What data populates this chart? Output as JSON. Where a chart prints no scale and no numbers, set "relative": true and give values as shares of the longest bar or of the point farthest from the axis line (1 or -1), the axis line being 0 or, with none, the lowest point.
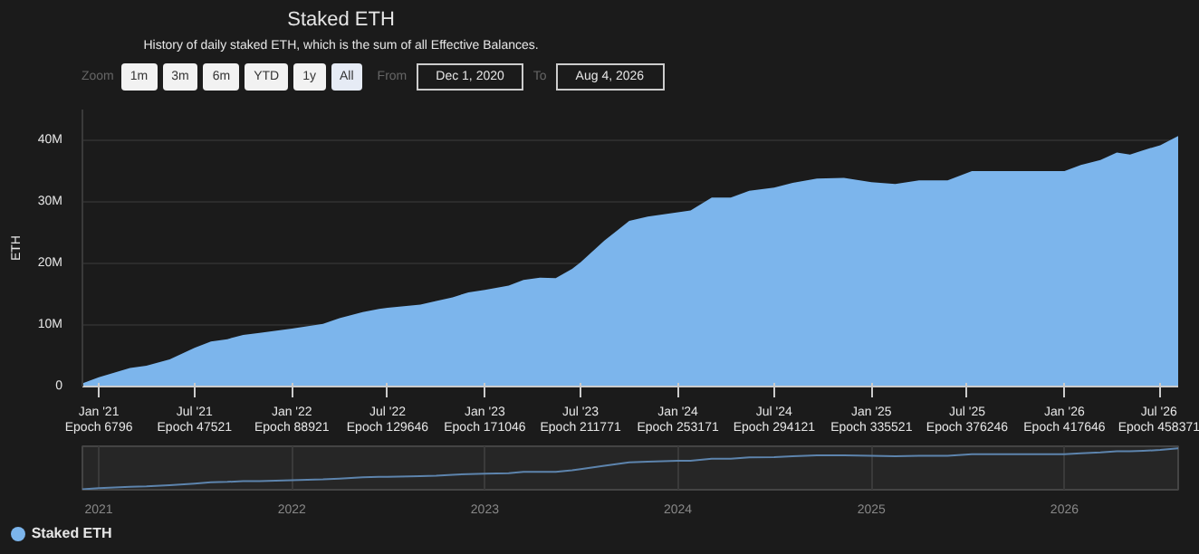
{
  "chart_data": [
    {
      "type": "area",
      "title": "Staked ETH",
      "subtitle": "History of daily staked ETH, which is the sum of all Effective Balances.",
      "ylabel": "ETH",
      "annotations": [
        "Zoom",
        "1m",
        "3m",
        "6m",
        "YTD",
        "1y",
        "All",
        "From",
        "Dec 1, 2020",
        "To",
        "Aug 4, 2026"
      ],
      "x": [
        "2020-12-01",
        "2021-01-01",
        "2021-03-01",
        "2021-04-01",
        "2021-05-15",
        "2021-07-01",
        "2021-08-01",
        "2021-09-01",
        "2021-10-01",
        "2021-11-01",
        "2022-01-01",
        "2022-03-01",
        "2022-04-01",
        "2022-05-15",
        "2022-06-15",
        "2022-07-01",
        "2022-09-01",
        "2022-10-01",
        "2022-11-01",
        "2022-12-01",
        "2023-01-01",
        "2023-02-15",
        "2023-03-15",
        "2023-04-15",
        "2023-05-15",
        "2023-06-15",
        "2023-07-01",
        "2023-08-15",
        "2023-10-01",
        "2023-11-05",
        "2024-01-01",
        "2024-01-25",
        "2024-03-05",
        "2024-04-10",
        "2024-05-15",
        "2024-07-01",
        "2024-08-05",
        "2024-09-20",
        "2024-11-10",
        "2025-01-01",
        "2025-02-15",
        "2025-04-01",
        "2025-05-25",
        "2025-07-10",
        "2025-09-05",
        "2025-11-25",
        "2026-01-01",
        "2026-02-01",
        "2026-03-10",
        "2026-04-10",
        "2026-05-05",
        "2026-05-30",
        "2026-07-01",
        "2026-08-04"
      ],
      "series": [
        {
          "name": "Staked ETH",
          "color": "#7cb5ec",
          "values": [
            0.5,
            1.5,
            3.0,
            3.4,
            4.4,
            6.3,
            7.3,
            7.7,
            8.4,
            8.7,
            9.4,
            10.2,
            11.1,
            12.1,
            12.6,
            12.8,
            13.3,
            13.9,
            14.5,
            15.3,
            15.7,
            16.4,
            17.3,
            17.7,
            17.6,
            19.1,
            20.2,
            23.7,
            26.9,
            27.6,
            28.3,
            28.6,
            30.7,
            30.7,
            31.8,
            32.3,
            33.1,
            33.8,
            33.9,
            33.2,
            32.9,
            33.5,
            33.5,
            35.0,
            35.0,
            35.0,
            35.0,
            36.0,
            36.8,
            38.0,
            37.7,
            38.4,
            39.2,
            40.7
          ]
        }
      ],
      "xlim": [
        "2020-12-01",
        "2026-08-04"
      ],
      "xticks": [
        {
          "value": "2021-01-01",
          "label": "Jan '21\nEpoch 6796"
        },
        {
          "value": "2021-07-01",
          "label": "Jul '21\nEpoch 47521"
        },
        {
          "value": "2022-01-01",
          "label": "Jan '22\nEpoch 88921"
        },
        {
          "value": "2022-07-01",
          "label": "Jul '22\nEpoch 129646"
        },
        {
          "value": "2023-01-01",
          "label": "Jan '23\nEpoch 171046"
        },
        {
          "value": "2023-07-01",
          "label": "Jul '23\nEpoch 211771"
        },
        {
          "value": "2024-01-01",
          "label": "Jan '24\nEpoch 253171"
        },
        {
          "value": "2024-07-01",
          "label": "Jul '24\nEpoch 294121"
        },
        {
          "value": "2025-01-01",
          "label": "Jan '25\nEpoch 335521"
        },
        {
          "value": "2025-07-01",
          "label": "Jul '25\nEpoch 376246"
        },
        {
          "value": "2026-01-01",
          "label": "Jan '26\nEpoch 417646"
        },
        {
          "value": "2026-07-01",
          "label": "Jul '26\nEpoch 458371"
        }
      ],
      "ylim": [
        0,
        45
      ],
      "yticks": [
        0,
        {
          "value": 10,
          "label": "10M"
        },
        {
          "value": 20,
          "label": "20M"
        },
        {
          "value": 30,
          "label": "30M"
        },
        {
          "value": 40,
          "label": "40M"
        }
      ],
      "grid": "y",
      "legend": "bottom"
    },
    {
      "type": "line",
      "x": [
        "2020-12-01",
        "2021-01-01",
        "2021-03-01",
        "2021-04-01",
        "2021-05-15",
        "2021-07-01",
        "2021-08-01",
        "2021-09-01",
        "2021-10-01",
        "2021-11-01",
        "2022-01-01",
        "2022-03-01",
        "2022-04-01",
        "2022-05-15",
        "2022-06-15",
        "2022-07-01",
        "2022-09-01",
        "2022-10-01",
        "2022-11-01",
        "2022-12-01",
        "2023-01-01",
        "2023-02-15",
        "2023-03-15",
        "2023-04-15",
        "2023-05-15",
        "2023-06-15",
        "2023-07-01",
        "2023-08-15",
        "2023-10-01",
        "2023-11-05",
        "2024-01-01",
        "2024-01-25",
        "2024-03-05",
        "2024-04-10",
        "2024-05-15",
        "2024-07-01",
        "2024-08-05",
        "2024-09-20",
        "2024-11-10",
        "2025-01-01",
        "2025-02-15",
        "2025-04-01",
        "2025-05-25",
        "2025-07-10",
        "2025-09-05",
        "2025-11-25",
        "2026-01-01",
        "2026-02-01",
        "2026-03-10",
        "2026-04-10",
        "2026-05-05",
        "2026-05-30",
        "2026-07-01",
        "2026-08-04"
      ],
      "series": [
        {
          "color": "#5d84ad",
          "values": [
            0.01,
            0.04,
            0.07,
            0.08,
            0.11,
            0.15,
            0.18,
            0.19,
            0.21,
            0.21,
            0.23,
            0.25,
            0.27,
            0.3,
            0.31,
            0.31,
            0.33,
            0.34,
            0.36,
            0.38,
            0.39,
            0.4,
            0.43,
            0.43,
            0.43,
            0.47,
            0.5,
            0.58,
            0.66,
            0.68,
            0.7,
            0.7,
            0.75,
            0.75,
            0.78,
            0.79,
            0.81,
            0.83,
            0.83,
            0.82,
            0.81,
            0.82,
            0.82,
            0.86,
            0.86,
            0.86,
            0.86,
            0.88,
            0.9,
            0.93,
            0.93,
            0.94,
            0.96,
            1
          ]
        }
      ],
      "xlim": [
        "2020-12-01",
        "2026-08-04"
      ],
      "xticks": [
        {
          "value": "2021-01-01",
          "label": "2021"
        },
        {
          "value": "2022-01-01",
          "label": "2022"
        },
        {
          "value": "2023-01-01",
          "label": "2023"
        },
        {
          "value": "2024-01-01",
          "label": "2024"
        },
        {
          "value": "2025-01-01",
          "label": "2025"
        },
        {
          "value": "2026-01-01",
          "label": "2026"
        }
      ],
      "relative": true,
      "tick_labels": "x",
      "grid": "x"
    }
  ]
}
